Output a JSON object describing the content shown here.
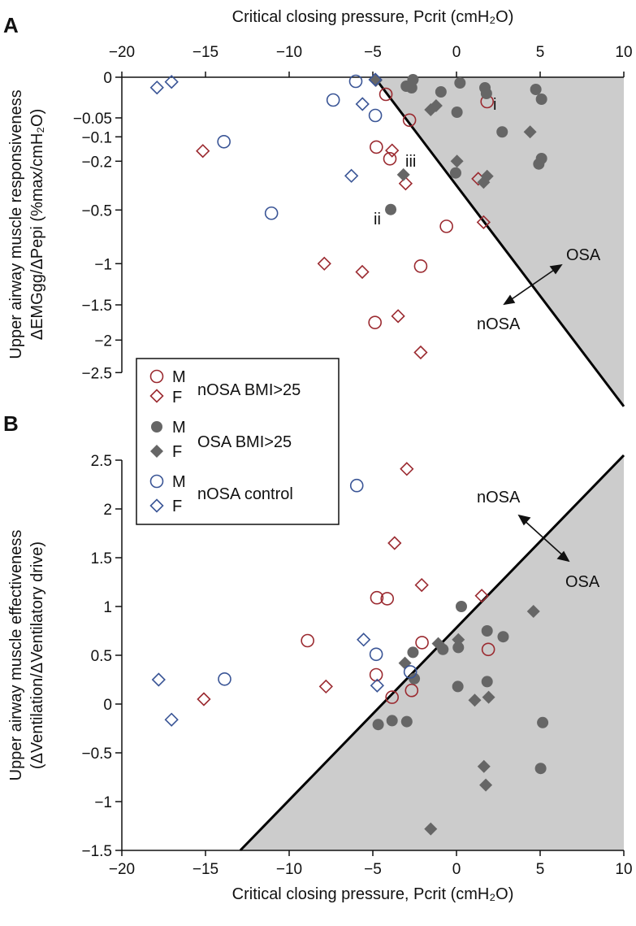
{
  "colors": {
    "nosa_bmi": "#9b2a30",
    "osa_bmi": "#666666",
    "control": "#3a5596",
    "shade": "#cccccc"
  },
  "chart_data": [
    {
      "panel": "A",
      "type": "scatter",
      "xlabel": "Critical closing pressure, Pcrit (cmH₂O)",
      "ylabel_line1": "Upper airway muscle responsiveness",
      "ylabel_line2": "ΔEMGgg/ΔPepi (%max/cmH₂O)",
      "xlim": [
        -20,
        10
      ],
      "ylim": [
        -3.02,
        0
      ],
      "y_scale": "nonlinear (compressed), ticks as listed",
      "x_ticks": [
        "-20",
        "-15",
        "-10",
        "-5",
        "0",
        "5",
        "10"
      ],
      "x_tick_labels": [
        "−20",
        "−15",
        "−10",
        "−5",
        "0",
        "5",
        "10"
      ],
      "y_ticks": [
        0,
        -0.05,
        -0.1,
        -0.2,
        -0.5,
        -1,
        -1.5,
        -2,
        -2.5
      ],
      "y_tick_labels": [
        "0",
        "−0.05",
        "−0.1",
        "−0.2",
        "−0.5",
        "−1",
        "−1.5",
        "−2",
        "−2.5"
      ],
      "boundary": [
        [
          -4.9,
          0
        ],
        [
          10,
          -3.02
        ]
      ],
      "regions": {
        "upper": "OSA",
        "lower": "nOSA"
      },
      "annotations": [
        {
          "text": "i",
          "x": 2.1,
          "y": -0.034
        },
        {
          "text": "ii",
          "x": -4.75,
          "y": -0.52
        },
        {
          "text": "iii",
          "x": -3.6,
          "y": -0.205
        }
      ],
      "series": [
        {
          "group": "nOSA BMI>25",
          "sex": "M",
          "marker": "open-circle",
          "color_key": "nosa_bmi",
          "points": [
            [
              -4.22,
              -0.021
            ],
            [
              1.83,
              -0.03
            ],
            [
              -2.81,
              -0.056
            ],
            [
              -4.79,
              -0.142
            ],
            [
              -3.98,
              -0.19
            ],
            [
              -0.6,
              -0.652
            ],
            [
              -2.14,
              -1.03
            ],
            [
              -4.87,
              -1.75
            ]
          ]
        },
        {
          "group": "nOSA BMI>25",
          "sex": "F",
          "marker": "open-diamond",
          "color_key": "nosa_bmi",
          "points": [
            [
              -15.16,
              -0.158
            ],
            [
              -3.85,
              -0.156
            ],
            [
              -3.04,
              -0.337
            ],
            [
              1.3,
              -0.308
            ],
            [
              1.62,
              -0.614
            ],
            [
              -7.9,
              -1.0
            ],
            [
              -5.63,
              -1.1
            ],
            [
              -3.49,
              -1.66
            ],
            [
              -2.14,
              -2.19
            ]
          ]
        },
        {
          "group": "OSA BMI>25",
          "sex": "M",
          "marker": "filled-circle",
          "color_key": "osa_bmi",
          "points": [
            [
              -3.0,
              -0.011
            ],
            [
              -2.6,
              -0.003
            ],
            [
              -2.68,
              -0.013
            ],
            [
              -0.93,
              -0.018
            ],
            [
              0.21,
              -0.007
            ],
            [
              1.7,
              -0.013
            ],
            [
              1.79,
              -0.02
            ],
            [
              4.74,
              -0.015
            ],
            [
              5.08,
              -0.027
            ],
            [
              0.03,
              -0.043
            ],
            [
              2.73,
              -0.087
            ],
            [
              5.08,
              -0.189
            ],
            [
              4.92,
              -0.217
            ],
            [
              -0.05,
              -0.272
            ],
            [
              -3.93,
              -0.497
            ]
          ]
        },
        {
          "group": "OSA BMI>25",
          "sex": "F",
          "marker": "filled-diamond",
          "color_key": "osa_bmi",
          "points": [
            [
              -4.82,
              -0.004
            ],
            [
              -1.54,
              -0.04
            ],
            [
              -1.22,
              -0.035
            ],
            [
              4.4,
              -0.087
            ],
            [
              0.03,
              -0.2
            ],
            [
              -3.17,
              -0.283
            ],
            [
              1.83,
              -0.292
            ],
            [
              1.62,
              -0.33
            ]
          ]
        },
        {
          "group": "nOSA control",
          "sex": "M",
          "marker": "open-circle",
          "color_key": "control",
          "points": [
            [
              -6.02,
              -0.005
            ],
            [
              -7.37,
              -0.028
            ],
            [
              -4.85,
              -0.047
            ],
            [
              -13.9,
              -0.12
            ],
            [
              -11.06,
              -0.53
            ]
          ]
        },
        {
          "group": "nOSA control",
          "sex": "F",
          "marker": "open-diamond",
          "color_key": "control",
          "points": [
            [
              -17.9,
              -0.0127
            ],
            [
              -17.03,
              -0.0057
            ],
            [
              -5.62,
              -0.033
            ],
            [
              -6.28,
              -0.29
            ],
            [
              -4.85,
              -0.003
            ]
          ]
        }
      ]
    },
    {
      "panel": "B",
      "type": "scatter",
      "xlabel": "Critical closing pressure, Pcrit (cmH₂O)",
      "ylabel_line1": "Upper airway muscle effectiveness",
      "ylabel_line2": "(ΔVentilation/ΔVentilatory drive)",
      "xlim": [
        -20,
        10
      ],
      "ylim": [
        -1.5,
        2.5
      ],
      "x_ticks": [
        "-20",
        "-15",
        "-10",
        "-5",
        "0",
        "5",
        "10"
      ],
      "x_tick_labels": [
        "−20",
        "−15",
        "−10",
        "−5",
        "0",
        "5",
        "10"
      ],
      "y_ticks": [
        2.5,
        2,
        1.5,
        1,
        0.5,
        0,
        -0.5,
        -1,
        -1.5
      ],
      "y_tick_labels": [
        "2.5",
        "2",
        "1.5",
        "1",
        "0.5",
        "0",
        "−0.5",
        "−1",
        "−1.5"
      ],
      "boundary": [
        [
          -12.92,
          -1.5
        ],
        [
          10,
          2.55
        ]
      ],
      "regions": {
        "upper": "nOSA",
        "lower": "OSA"
      },
      "series": [
        {
          "group": "nOSA BMI>25",
          "sex": "M",
          "marker": "open-circle",
          "color_key": "nosa_bmi",
          "points": [
            [
              -4.76,
              1.09
            ],
            [
              -4.14,
              1.08
            ],
            [
              -8.9,
              0.65
            ],
            [
              -4.8,
              0.3
            ],
            [
              1.9,
              0.56
            ],
            [
              -2.06,
              0.63
            ],
            [
              -2.68,
              0.14
            ],
            [
              -3.85,
              0.07
            ]
          ]
        },
        {
          "group": "nOSA BMI>25",
          "sex": "F",
          "marker": "open-diamond",
          "color_key": "nosa_bmi",
          "points": [
            [
              -2.97,
              2.41
            ],
            [
              -3.7,
              1.65
            ],
            [
              -2.08,
              1.22
            ],
            [
              1.51,
              1.11
            ],
            [
              -15.1,
              0.05
            ],
            [
              -7.8,
              0.18
            ]
          ]
        },
        {
          "group": "OSA BMI>25",
          "sex": "M",
          "marker": "filled-circle",
          "color_key": "osa_bmi",
          "points": [
            [
              0.29,
              1.0
            ],
            [
              1.83,
              0.75
            ],
            [
              2.79,
              0.69
            ],
            [
              -0.81,
              0.56
            ],
            [
              0.11,
              0.58
            ],
            [
              -2.6,
              0.53
            ],
            [
              -2.52,
              0.26
            ],
            [
              0.08,
              0.18
            ],
            [
              1.83,
              0.23
            ],
            [
              -4.68,
              -0.21
            ],
            [
              -3.85,
              -0.17
            ],
            [
              -2.97,
              -0.18
            ],
            [
              5.15,
              -0.19
            ],
            [
              5.03,
              -0.66
            ]
          ]
        },
        {
          "group": "OSA BMI>25",
          "sex": "F",
          "marker": "filled-diamond",
          "color_key": "osa_bmi",
          "points": [
            [
              4.6,
              0.95
            ],
            [
              -1.09,
              0.62
            ],
            [
              0.11,
              0.66
            ],
            [
              -3.08,
              0.42
            ],
            [
              1.09,
              0.04
            ],
            [
              1.92,
              0.07
            ],
            [
              1.64,
              -0.64
            ],
            [
              1.75,
              -0.83
            ],
            [
              -1.54,
              -1.28
            ]
          ]
        },
        {
          "group": "nOSA control",
          "sex": "M",
          "marker": "open-circle",
          "color_key": "control",
          "points": [
            [
              -5.96,
              2.24
            ],
            [
              -4.8,
              0.51
            ],
            [
              -13.86,
              0.256
            ],
            [
              -2.76,
              0.33
            ]
          ]
        },
        {
          "group": "nOSA control",
          "sex": "F",
          "marker": "open-diamond",
          "color_key": "control",
          "points": [
            [
              -5.55,
              0.66
            ],
            [
              -4.74,
              0.19
            ],
            [
              -17.8,
              0.25
            ],
            [
              -17.03,
              -0.16
            ]
          ]
        }
      ]
    }
  ],
  "labels": {
    "panel_a": "A",
    "panel_b": "B",
    "osa": "OSA",
    "nosa": "nOSA"
  },
  "legend": {
    "placement": "left-middle",
    "groups": [
      {
        "name": "nOSA BMI>25",
        "m": "M",
        "f": "F"
      },
      {
        "name": "OSA BMI>25",
        "m": "M",
        "f": "F"
      },
      {
        "name": "nOSA control",
        "m": "M",
        "f": "F"
      }
    ]
  }
}
